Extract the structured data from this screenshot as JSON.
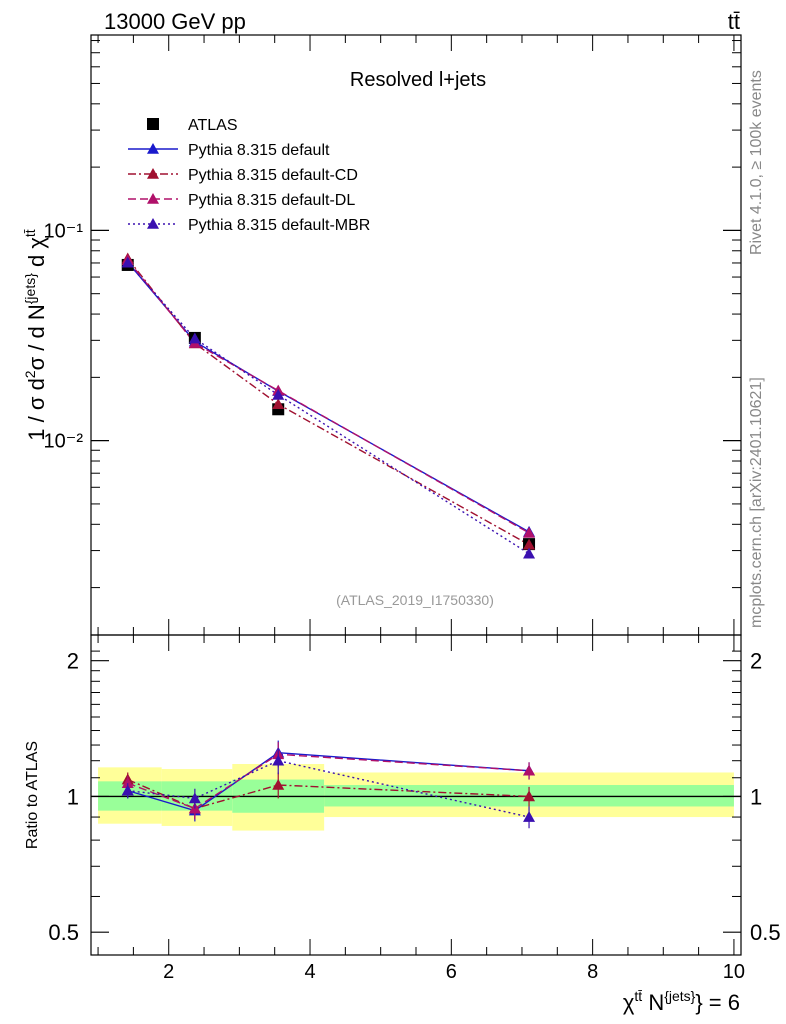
{
  "header": {
    "energy_label": "13000 GeV pp",
    "process_label": "tt̄"
  },
  "side_labels": {
    "rivet": "Rivet 4.1.0, ≥ 100k events",
    "mcplots": "mcplots.cern.ch [arXiv:2401.10621]"
  },
  "chart_data": [
    {
      "type": "line",
      "panel": "main",
      "title": "Resolved l+jets",
      "watermark": "(ATLAS_2019_I1750330)",
      "ylabel": "1 / σ d²σ / d N^{jets} d χ^{tt̄}",
      "yscale": "log",
      "xlim": [
        0.9,
        10.1
      ],
      "ylim": [
        0.00119,
        0.85
      ],
      "y_tick_labels": [
        "10⁻¹",
        "10⁻²"
      ],
      "y_tick_values": [
        0.1,
        0.01
      ],
      "bins": [
        [
          1,
          1.9
        ],
        [
          1.9,
          2.9
        ],
        [
          2.9,
          4.2
        ],
        [
          4.2,
          10
        ]
      ],
      "x": [
        1.42,
        2.37,
        3.55,
        7.1
      ],
      "series": [
        {
          "name": "ATLAS",
          "marker": "square",
          "color": "#000000",
          "dash": "none",
          "values": [
            0.0685,
            0.0308,
            0.0141,
            0.00322
          ]
        },
        {
          "name": "Pythia 8.315 default",
          "marker": "triangle",
          "color": "#1a1acc",
          "dash": "solid",
          "values": [
            0.0705,
            0.0296,
            0.0172,
            0.00368
          ],
          "errors": [
            0.003,
            0.0012,
            0.0009,
            0.0002
          ]
        },
        {
          "name": "Pythia 8.315 default-CD",
          "marker": "triangle",
          "color": "#a01030",
          "dash": "dashdot",
          "values": [
            0.0735,
            0.029,
            0.0149,
            0.0032
          ]
        },
        {
          "name": "Pythia 8.315 default-DL",
          "marker": "triangle",
          "color": "#b0106a",
          "dash": "dashed",
          "values": [
            0.0722,
            0.0291,
            0.0173,
            0.00364
          ]
        },
        {
          "name": "Pythia 8.315 default-MBR",
          "marker": "triangle",
          "color": "#3a10b0",
          "dash": "dotted",
          "values": [
            0.0702,
            0.0306,
            0.0165,
            0.0029
          ]
        }
      ]
    },
    {
      "type": "line",
      "panel": "ratio",
      "ylabel": "Ratio to ATLAS",
      "yscale": "log",
      "xlabel": "χ^{tt̄} N^{jets} = 6",
      "xlim": [
        0.9,
        10.1
      ],
      "ylim": [
        0.445,
        2.28
      ],
      "x_ticks": [
        2,
        4,
        6,
        8,
        10
      ],
      "y_tick_labels": [
        "2",
        "1",
        "0.5"
      ],
      "y_tick_values": [
        2,
        1,
        0.5
      ],
      "bins": [
        [
          1,
          1.9
        ],
        [
          1.9,
          2.9
        ],
        [
          2.9,
          4.2
        ],
        [
          4.2,
          10
        ]
      ],
      "x": [
        1.42,
        2.37,
        3.55,
        7.1
      ],
      "band_inner": [
        [
          0.93,
          1.08
        ],
        [
          0.93,
          1.08
        ],
        [
          0.92,
          1.09
        ],
        [
          0.95,
          1.06
        ]
      ],
      "band_outer": [
        [
          0.87,
          1.16
        ],
        [
          0.86,
          1.15
        ],
        [
          0.84,
          1.18
        ],
        [
          0.9,
          1.13
        ]
      ],
      "series": [
        {
          "name": "Pythia 8.315 default",
          "color": "#1a1acc",
          "dash": "solid",
          "values": [
            1.03,
            0.93,
            1.25,
            1.14
          ],
          "errors": [
            0.04,
            0.05,
            0.08,
            0.05
          ]
        },
        {
          "name": "Pythia 8.315 default-CD",
          "color": "#a01030",
          "dash": "dashdot",
          "values": [
            1.09,
            0.94,
            1.06,
            1.0
          ],
          "errors": [
            0.04,
            0.05,
            0.07,
            0.05
          ]
        },
        {
          "name": "Pythia 8.315 default-DL",
          "color": "#b0106a",
          "dash": "dashed",
          "values": [
            1.07,
            0.94,
            1.24,
            1.14
          ],
          "errors": [
            0.04,
            0.05,
            0.08,
            0.05
          ]
        },
        {
          "name": "Pythia 8.315 default-MBR",
          "color": "#3a10b0",
          "dash": "dotted",
          "values": [
            1.03,
            0.99,
            1.2,
            0.9
          ],
          "errors": [
            0.04,
            0.05,
            0.08,
            0.05
          ]
        }
      ]
    }
  ]
}
